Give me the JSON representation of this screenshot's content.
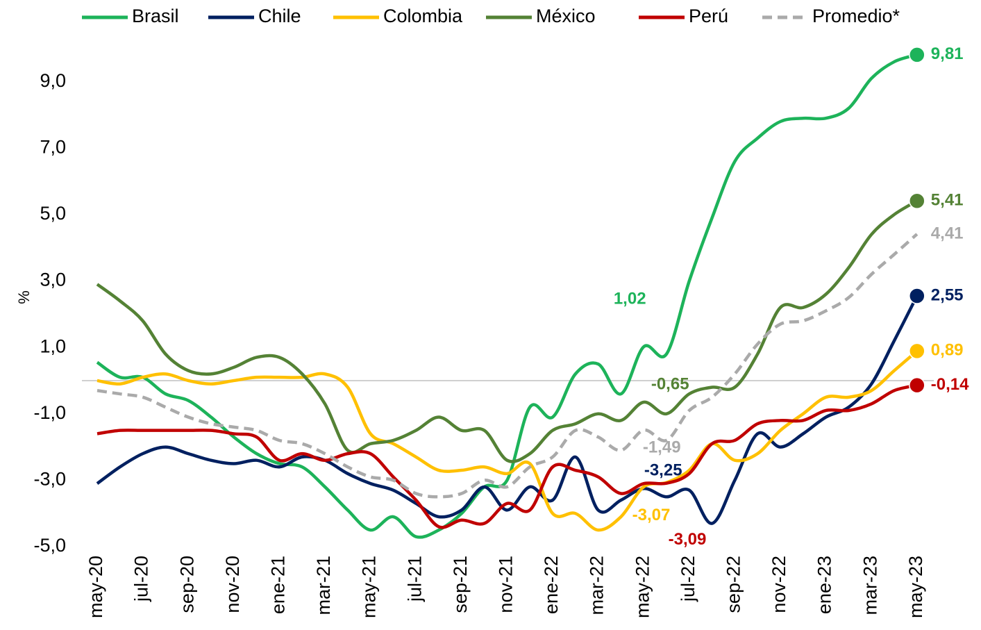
{
  "chart_data": {
    "type": "line",
    "y_label": "%",
    "categories": [
      "may-20",
      null,
      "jul-20",
      null,
      "sep-20",
      null,
      "nov-20",
      null,
      "ene-21",
      null,
      "mar-21",
      null,
      "may-21",
      null,
      "jul-21",
      null,
      "sep-21",
      null,
      "nov-21",
      null,
      "ene-22",
      null,
      "mar-22",
      null,
      "may-22",
      null,
      "jul-22",
      null,
      "sep-22",
      null,
      "nov-22",
      null,
      "ene-23",
      null,
      "mar-23",
      null,
      "may-23"
    ],
    "ylim": [
      -5,
      11
    ],
    "yticks": [
      {
        "value": -5,
        "label": "-5,0"
      },
      {
        "value": -3,
        "label": "-3,0"
      },
      {
        "value": -1,
        "label": "-1,0"
      },
      {
        "value": 1,
        "label": "1,0"
      },
      {
        "value": 3,
        "label": "3,0"
      },
      {
        "value": 5,
        "label": "5,0"
      },
      {
        "value": 7,
        "label": "7,0"
      },
      {
        "value": 9,
        "label": "9,0"
      }
    ],
    "series": [
      {
        "name": "Brasil",
        "color": "#1db35a",
        "dashed": false,
        "values": [
          0.55,
          0.1,
          0.1,
          -0.4,
          -0.6,
          -1.1,
          -1.7,
          -2.2,
          -2.5,
          -2.6,
          -3.2,
          -3.9,
          -4.5,
          -4.1,
          -4.7,
          -4.5,
          -4.0,
          -3.2,
          -3.0,
          -0.8,
          -1.1,
          0.2,
          0.5,
          -0.4,
          1.02,
          0.8,
          3.0,
          4.9,
          6.6,
          7.3,
          7.8,
          7.9,
          7.9,
          8.2,
          9.1,
          9.6,
          9.81
        ],
        "value_labels": [
          null,
          null,
          null,
          null,
          null,
          null,
          null,
          null,
          null,
          null,
          null,
          null,
          null,
          null,
          null,
          null,
          null,
          null,
          null,
          null,
          null,
          null,
          null,
          null,
          "1,02",
          null,
          null,
          null,
          null,
          null,
          null,
          null,
          null,
          null,
          null,
          null,
          "9,81"
        ]
      },
      {
        "name": "Chile",
        "color": "#002060",
        "dashed": false,
        "values": [
          -3.1,
          -2.6,
          -2.2,
          -2.0,
          -2.2,
          -2.4,
          -2.5,
          -2.4,
          -2.6,
          -2.3,
          -2.4,
          -2.8,
          -3.1,
          -3.3,
          -3.7,
          -4.1,
          -3.9,
          -3.2,
          -3.9,
          -3.2,
          -3.6,
          -2.3,
          -3.9,
          -3.6,
          -3.25,
          -3.5,
          -3.3,
          -4.3,
          -3.0,
          -1.6,
          -2.0,
          -1.6,
          -1.1,
          -0.8,
          -0.1,
          1.2,
          2.55
        ],
        "value_labels": [
          null,
          null,
          null,
          null,
          null,
          null,
          null,
          null,
          null,
          null,
          null,
          null,
          null,
          null,
          null,
          null,
          null,
          null,
          null,
          null,
          null,
          null,
          null,
          null,
          "-3,25",
          null,
          null,
          null,
          null,
          null,
          null,
          null,
          null,
          null,
          null,
          null,
          "2,55"
        ]
      },
      {
        "name": "Colombia",
        "color": "#ffc000",
        "dashed": false,
        "values": [
          0.0,
          -0.1,
          0.1,
          0.2,
          0.0,
          -0.1,
          0.0,
          0.1,
          0.1,
          0.1,
          0.2,
          -0.2,
          -1.6,
          -1.9,
          -2.3,
          -2.7,
          -2.7,
          -2.6,
          -2.8,
          -2.5,
          -4.0,
          -4.0,
          -4.5,
          -4.1,
          -3.2,
          -3.07,
          -2.7,
          -1.9,
          -2.4,
          -2.2,
          -1.5,
          -1.0,
          -0.5,
          -0.5,
          -0.3,
          0.3,
          0.89
        ],
        "value_labels": [
          null,
          null,
          null,
          null,
          null,
          null,
          null,
          null,
          null,
          null,
          null,
          null,
          null,
          null,
          null,
          null,
          null,
          null,
          null,
          null,
          null,
          null,
          null,
          null,
          null,
          "-3,07",
          null,
          null,
          null,
          null,
          null,
          null,
          null,
          null,
          null,
          null,
          "0,89"
        ]
      },
      {
        "name": "México",
        "color": "#548235",
        "dashed": false,
        "values": [
          2.9,
          2.4,
          1.8,
          0.8,
          0.3,
          0.2,
          0.4,
          0.7,
          0.7,
          0.2,
          -0.7,
          -2.1,
          -1.9,
          -1.8,
          -1.5,
          -1.1,
          -1.5,
          -1.5,
          -2.4,
          -2.2,
          -1.5,
          -1.3,
          -1.0,
          -1.2,
          -0.65,
          -1.0,
          -0.4,
          -0.2,
          -0.2,
          0.8,
          2.2,
          2.2,
          2.6,
          3.4,
          4.4,
          5.0,
          5.41
        ],
        "value_labels": [
          null,
          null,
          null,
          null,
          null,
          null,
          null,
          null,
          null,
          null,
          null,
          null,
          null,
          null,
          null,
          null,
          null,
          null,
          null,
          null,
          null,
          null,
          null,
          null,
          "-0,65",
          null,
          null,
          null,
          null,
          null,
          null,
          null,
          null,
          null,
          null,
          null,
          "5,41"
        ]
      },
      {
        "name": "Perú",
        "color": "#c00000",
        "dashed": false,
        "values": [
          -1.6,
          -1.5,
          -1.5,
          -1.5,
          -1.5,
          -1.5,
          -1.6,
          -1.7,
          -2.4,
          -2.2,
          -2.4,
          -2.2,
          -2.2,
          -2.9,
          -3.6,
          -4.4,
          -4.2,
          -4.3,
          -3.7,
          -3.9,
          -2.6,
          -2.7,
          -2.9,
          -3.4,
          -3.1,
          -3.09,
          -2.8,
          -1.9,
          -1.8,
          -1.3,
          -1.2,
          -1.2,
          -0.9,
          -0.9,
          -0.7,
          -0.3,
          -0.14
        ],
        "value_labels": [
          null,
          null,
          null,
          null,
          null,
          null,
          null,
          null,
          null,
          null,
          null,
          null,
          null,
          null,
          null,
          null,
          null,
          null,
          null,
          null,
          null,
          null,
          null,
          null,
          null,
          "-3,09",
          null,
          null,
          null,
          null,
          null,
          null,
          null,
          null,
          null,
          null,
          "-0,14"
        ]
      },
      {
        "name": "Promedio*",
        "color": "#aaaaaa",
        "dashed": true,
        "values": [
          -0.3,
          -0.4,
          -0.5,
          -0.8,
          -1.1,
          -1.3,
          -1.4,
          -1.5,
          -1.8,
          -1.9,
          -2.2,
          -2.6,
          -2.9,
          -3.0,
          -3.4,
          -3.5,
          -3.4,
          -3.0,
          -3.2,
          -2.6,
          -2.3,
          -1.5,
          -1.7,
          -2.1,
          -1.49,
          -1.8,
          -0.9,
          -0.5,
          0.2,
          1.1,
          1.7,
          1.8,
          2.1,
          2.5,
          3.2,
          3.8,
          4.41
        ],
        "value_labels": [
          null,
          null,
          null,
          null,
          null,
          null,
          null,
          null,
          null,
          null,
          null,
          null,
          null,
          null,
          null,
          null,
          null,
          null,
          null,
          null,
          null,
          null,
          null,
          null,
          "-1,49",
          null,
          null,
          null,
          null,
          null,
          null,
          null,
          null,
          null,
          null,
          null,
          "4,41"
        ]
      }
    ]
  }
}
